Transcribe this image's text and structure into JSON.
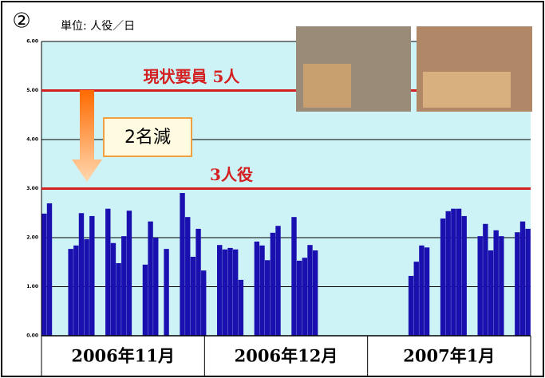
{
  "chart_data": {
    "type": "bar",
    "badge": "②",
    "unit_label": "単位: 人役／日",
    "categories": [
      null,
      null,
      null,
      null,
      null,
      null,
      null,
      null,
      null,
      null,
      null,
      null,
      null,
      null,
      null,
      null,
      null,
      null,
      null,
      null,
      null,
      null,
      null,
      null,
      null,
      null,
      null,
      null,
      null,
      null,
      null,
      null,
      null,
      null,
      null,
      null,
      null,
      null,
      null,
      null,
      null,
      null,
      null,
      null,
      null,
      null,
      null,
      null,
      null,
      null,
      null,
      null,
      null,
      null,
      null,
      null,
      null,
      null,
      null,
      null,
      null,
      null,
      null,
      null,
      null,
      null,
      null,
      null,
      null,
      null,
      null,
      null,
      null,
      null,
      null,
      null,
      null,
      null,
      null,
      null,
      null,
      null,
      null,
      null,
      null,
      null,
      null,
      null,
      null,
      null,
      null,
      null
    ],
    "values": [
      2.49,
      2.7,
      null,
      null,
      null,
      1.77,
      1.84,
      2.5,
      1.97,
      2.44,
      null,
      null,
      2.59,
      1.89,
      1.48,
      2.03,
      2.55,
      null,
      null,
      1.45,
      2.33,
      2.0,
      null,
      1.77,
      null,
      null,
      2.91,
      2.42,
      1.61,
      2.18,
      1.33,
      null,
      null,
      1.85,
      1.76,
      1.79,
      1.76,
      1.14,
      null,
      null,
      1.92,
      1.84,
      1.54,
      2.1,
      2.24,
      null,
      null,
      2.42,
      1.53,
      1.59,
      1.85,
      1.74,
      null,
      null,
      null,
      null,
      null,
      null,
      null,
      null,
      null,
      null,
      null,
      null,
      null,
      null,
      null,
      null,
      null,
      1.22,
      1.51,
      1.84,
      1.8,
      null,
      null,
      2.39,
      2.54,
      2.59,
      2.59,
      2.44,
      null,
      null,
      2.03,
      2.28,
      1.74,
      2.15,
      2.03,
      null,
      null,
      2.11,
      2.33,
      2.18
    ],
    "color": "#1a10b0",
    "x_groups": [
      "2006年11月",
      "2006年12月",
      "2007年1月"
    ],
    "ylim": [
      0,
      6
    ],
    "yticks": [
      {
        "value": 0,
        "label": "0.00"
      },
      {
        "value": 1,
        "label": "1.00"
      },
      {
        "value": 2,
        "label": "2.00"
      },
      {
        "value": 3,
        "label": "3.00"
      },
      {
        "value": 4,
        "label": "4.00"
      },
      {
        "value": 5,
        "label": "5.00"
      },
      {
        "value": 6,
        "label": "6.00"
      }
    ],
    "grid": true,
    "reference_lines": [
      {
        "value": 5,
        "label": "現状要員 5人",
        "color": "#d42020"
      },
      {
        "value": 3,
        "label": "3人役",
        "color": "#d42020"
      }
    ],
    "annotation": "2名減"
  }
}
